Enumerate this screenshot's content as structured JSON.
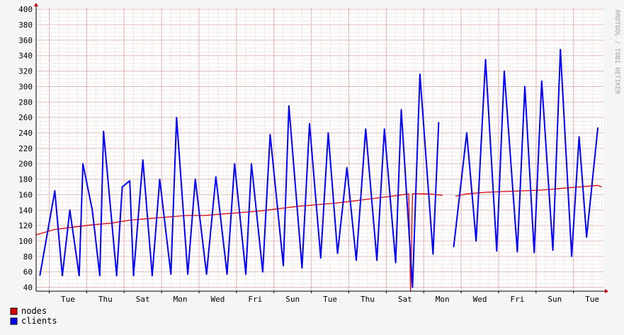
{
  "watermark": "RRDTOOL / TOBI OETIKER",
  "colors": {
    "background": "#f5f5f5",
    "plot_bg": "#ffffff",
    "grid_major": "#e08080",
    "grid_minor": "#eec6c6",
    "axis": "#000000",
    "arrow": "#cc0000",
    "nodes": "#dd0000",
    "clients": "#0000ff",
    "text": "#000000",
    "watermark": "#a0a0a0"
  },
  "chart_data": {
    "type": "line",
    "title": "",
    "xlabel": "",
    "ylabel": "",
    "ylim": [
      35,
      402
    ],
    "y_ticks": [
      40,
      60,
      80,
      100,
      120,
      140,
      160,
      180,
      200,
      220,
      240,
      260,
      280,
      300,
      320,
      340,
      360,
      380,
      400
    ],
    "x_unit": "day",
    "x_range": [
      0,
      15.15
    ],
    "x_tick_labels": [
      {
        "day": 0.85,
        "label": "Tue"
      },
      {
        "day": 1.85,
        "label": "Thu"
      },
      {
        "day": 2.85,
        "label": "Sat"
      },
      {
        "day": 3.85,
        "label": "Mon"
      },
      {
        "day": 4.85,
        "label": "Wed"
      },
      {
        "day": 5.85,
        "label": "Fri"
      },
      {
        "day": 6.85,
        "label": "Sun"
      },
      {
        "day": 7.85,
        "label": "Tue"
      },
      {
        "day": 8.85,
        "label": "Thu"
      },
      {
        "day": 9.85,
        "label": "Sat"
      },
      {
        "day": 10.85,
        "label": "Mon"
      },
      {
        "day": 11.85,
        "label": "Wed"
      },
      {
        "day": 12.85,
        "label": "Fri"
      },
      {
        "day": 13.85,
        "label": "Sun"
      },
      {
        "day": 14.85,
        "label": "Tue"
      }
    ],
    "grid": true,
    "legend_position": "bottom-left",
    "series": [
      {
        "name": "nodes",
        "color": "#dd0000",
        "points": [
          [
            0,
            108
          ],
          [
            0.5,
            115
          ],
          [
            1,
            118
          ],
          [
            1.5,
            121
          ],
          [
            2,
            123
          ],
          [
            2.5,
            127
          ],
          [
            3,
            129
          ],
          [
            3.5,
            131
          ],
          [
            4,
            133
          ],
          [
            4.5,
            133
          ],
          [
            5,
            135
          ],
          [
            5.5,
            137
          ],
          [
            6,
            139
          ],
          [
            6.5,
            142
          ],
          [
            7,
            145
          ],
          [
            7.5,
            147
          ],
          [
            8,
            149
          ],
          [
            8.5,
            152
          ],
          [
            9,
            155
          ],
          [
            9.5,
            158
          ],
          [
            9.95,
            161
          ],
          [
            10.0,
            35
          ],
          [
            10.05,
            161
          ],
          [
            10.5,
            161
          ],
          [
            10.85,
            159
          ],
          [
            null,
            null
          ],
          [
            11.2,
            158
          ],
          [
            11.5,
            161
          ],
          [
            12,
            163
          ],
          [
            12.5,
            164
          ],
          [
            13,
            165
          ],
          [
            13.5,
            166
          ],
          [
            14,
            168
          ],
          [
            14.5,
            170
          ],
          [
            15,
            172
          ],
          [
            15.1,
            170
          ]
        ]
      },
      {
        "name": "clients",
        "color": "#0000ff",
        "peaks": [
          [
            0.5,
            165
          ],
          [
            0.9,
            140
          ],
          [
            1.25,
            200
          ],
          [
            1.5,
            140
          ],
          [
            1.8,
            242
          ],
          [
            2.3,
            170
          ],
          [
            2.5,
            178
          ],
          [
            2.85,
            205
          ],
          [
            3.3,
            180
          ],
          [
            3.75,
            260
          ],
          [
            4.25,
            180
          ],
          [
            4.8,
            183
          ],
          [
            5.3,
            200
          ],
          [
            5.75,
            200
          ],
          [
            6.25,
            238
          ],
          [
            6.75,
            275
          ],
          [
            7.3,
            252
          ],
          [
            7.8,
            240
          ],
          [
            8.3,
            195
          ],
          [
            8.8,
            245
          ],
          [
            9.3,
            245
          ],
          [
            9.75,
            270
          ],
          [
            10.25,
            316
          ],
          [
            10.75,
            254
          ],
          [
            11.5,
            240
          ],
          [
            12.0,
            335
          ],
          [
            12.5,
            320
          ],
          [
            13.05,
            300
          ],
          [
            13.5,
            307
          ],
          [
            14.0,
            348
          ],
          [
            14.5,
            235
          ],
          [
            15.0,
            247
          ]
        ],
        "troughs": [
          [
            0.1,
            55
          ],
          [
            0.7,
            55
          ],
          [
            1.15,
            55
          ],
          [
            1.7,
            55
          ],
          [
            2.15,
            55
          ],
          [
            2.6,
            55
          ],
          [
            3.1,
            55
          ],
          [
            3.6,
            57
          ],
          [
            4.05,
            57
          ],
          [
            4.55,
            57
          ],
          [
            5.1,
            57
          ],
          [
            5.6,
            57
          ],
          [
            6.05,
            60
          ],
          [
            6.6,
            68
          ],
          [
            7.1,
            65
          ],
          [
            7.6,
            78
          ],
          [
            8.05,
            84
          ],
          [
            8.55,
            75
          ],
          [
            9.1,
            75
          ],
          [
            9.6,
            72
          ],
          [
            10.05,
            40
          ],
          [
            10.6,
            83
          ],
          [
            11.0,
            83
          ],
          [
            11.15,
            92
          ],
          [
            11.75,
            100
          ],
          [
            12.3,
            87
          ],
          [
            12.85,
            86
          ],
          [
            13.3,
            85
          ],
          [
            13.8,
            88
          ],
          [
            14.3,
            80
          ],
          [
            14.7,
            105
          ]
        ],
        "gap": [
          10.92,
          11.15
        ]
      }
    ]
  },
  "legend": [
    {
      "label": "nodes",
      "color": "#dd0000"
    },
    {
      "label": "clients",
      "color": "#0000ff"
    }
  ]
}
